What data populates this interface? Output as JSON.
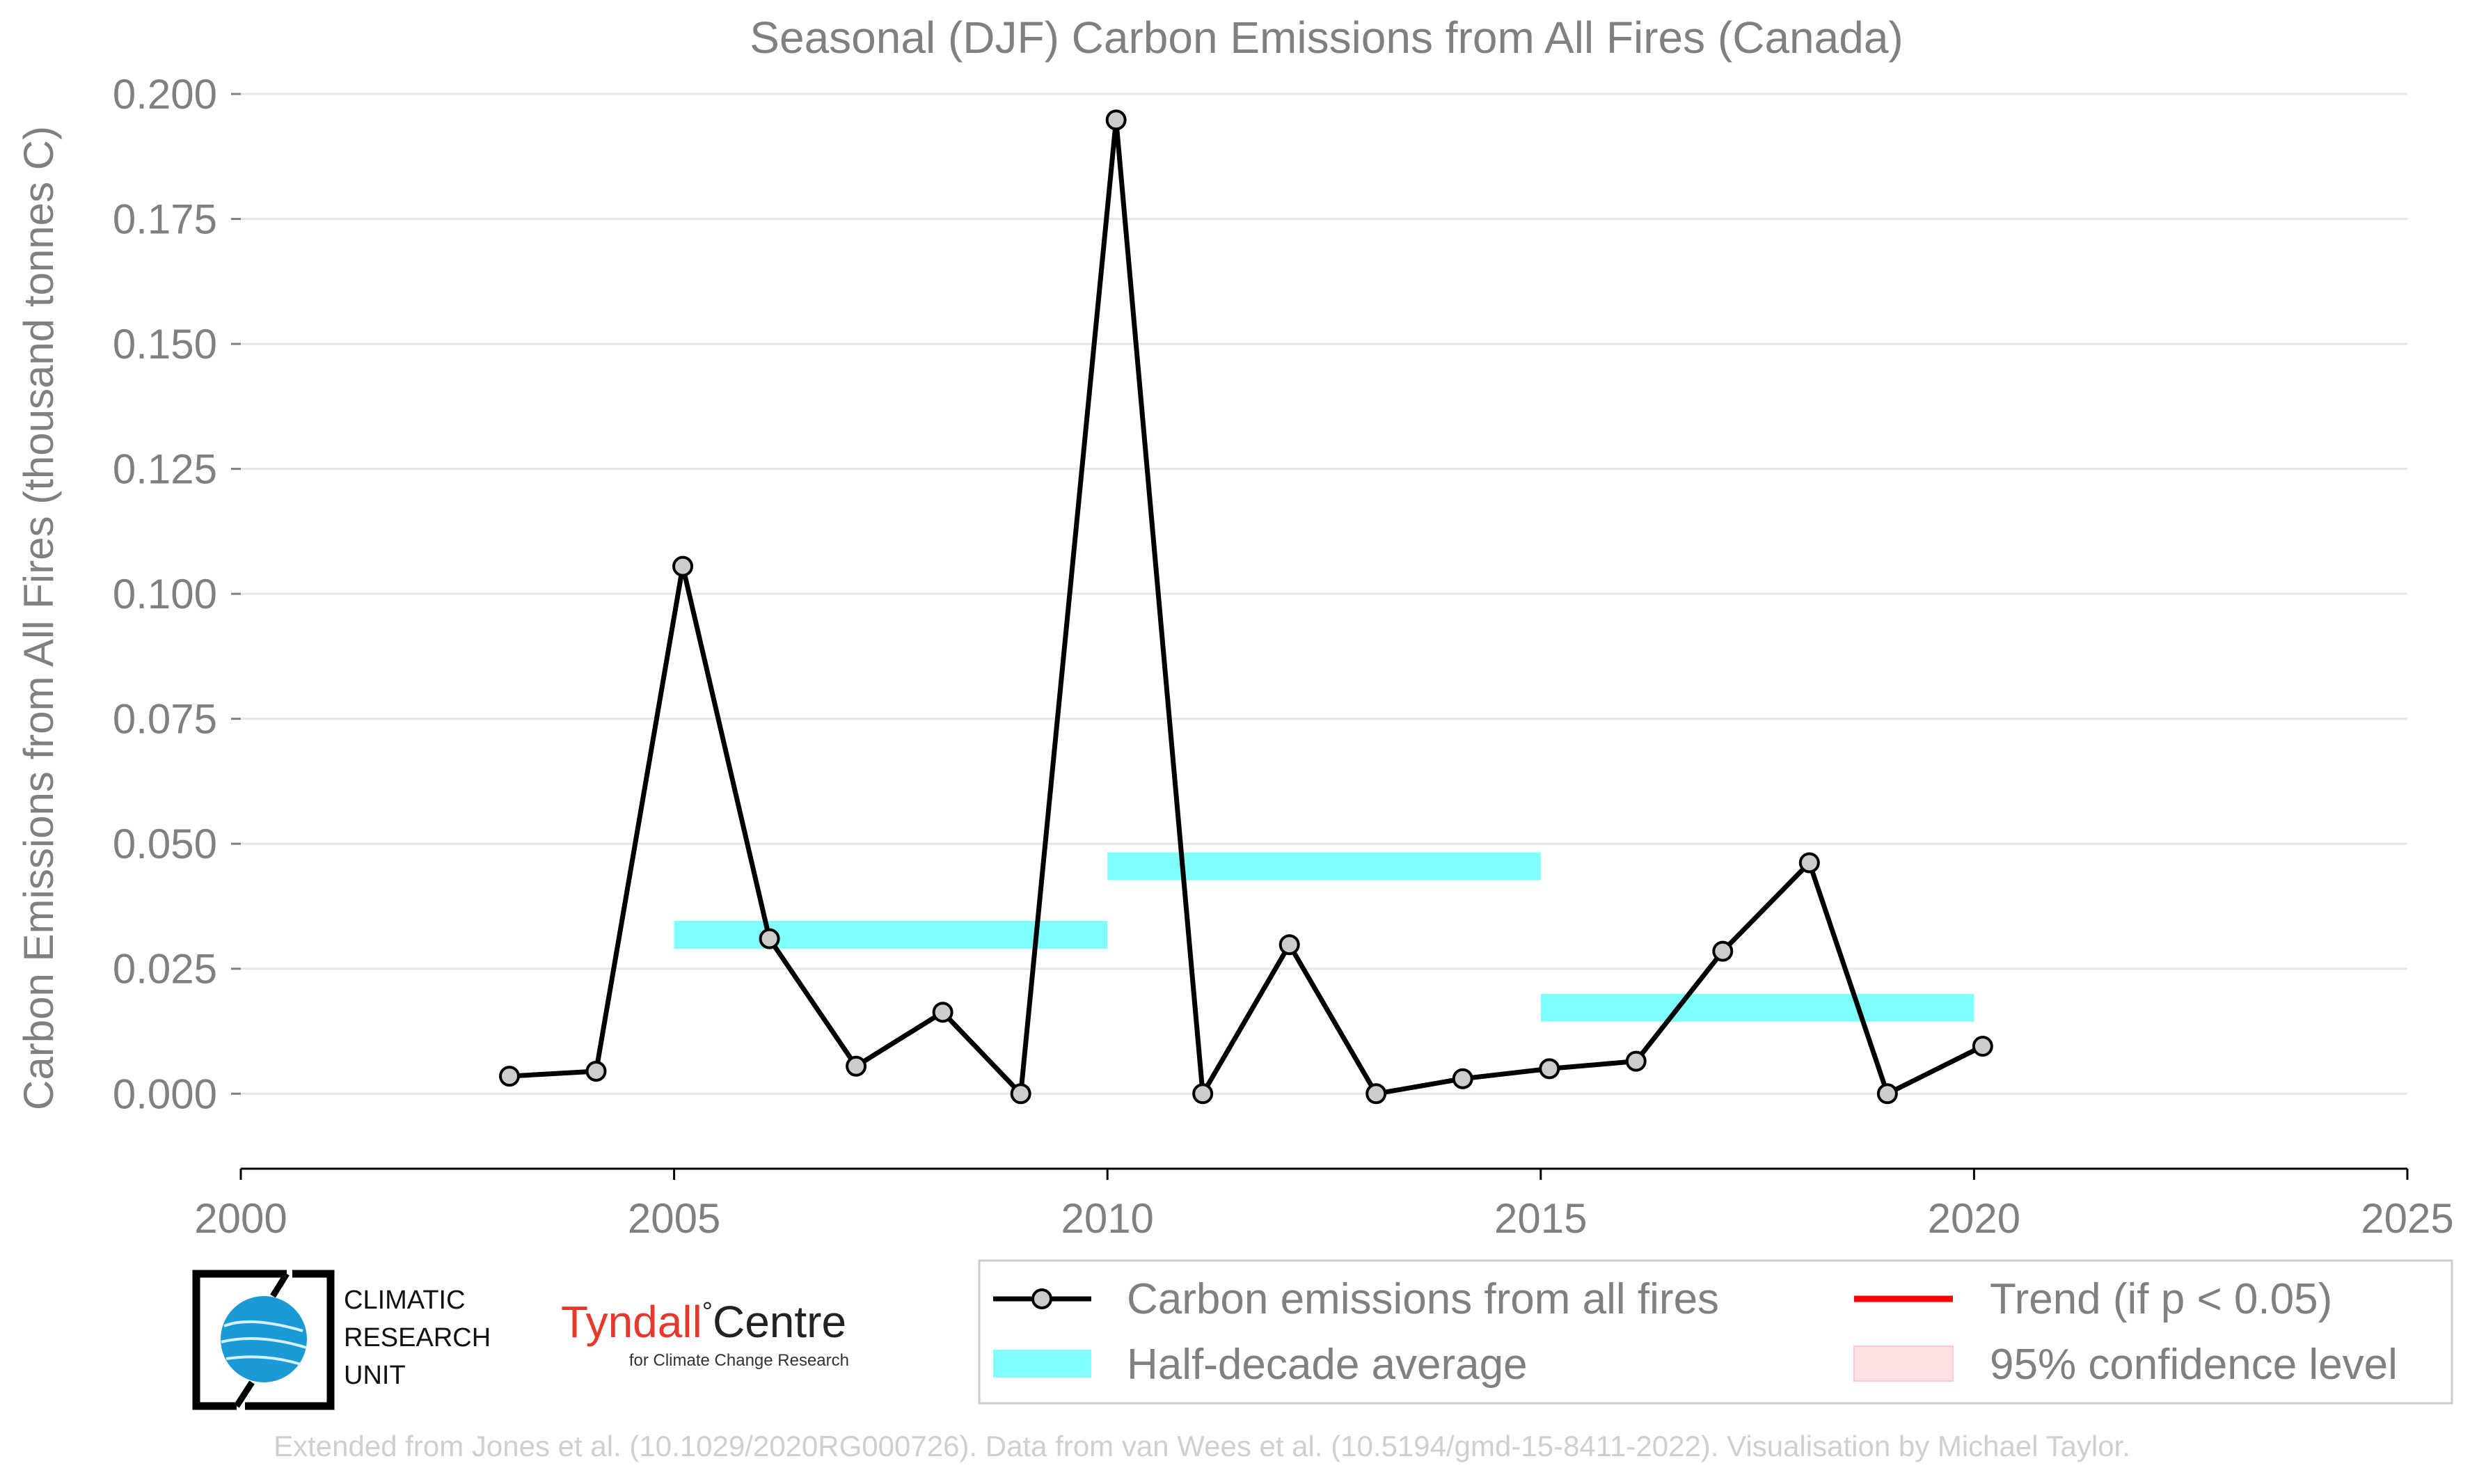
{
  "chart_data": {
    "type": "line",
    "title": "Seasonal (DJF) Carbon Emissions from All Fires (Canada)",
    "xlabel": "",
    "ylabel": "Carbon Emissions from All Fires (thousand tonnes C)",
    "xlim": [
      2000,
      2025
    ],
    "ylim": [
      -0.015,
      0.2
    ],
    "x_ticks": [
      "2000",
      "2005",
      "2010",
      "2015",
      "2020",
      "2025"
    ],
    "y_ticks": [
      "0.000",
      "0.025",
      "0.050",
      "0.075",
      "0.100",
      "0.125",
      "0.150",
      "0.175",
      "0.200"
    ],
    "grid": "horizontal",
    "series": [
      {
        "name": "Carbon emissions from all fires",
        "color": "#000000",
        "marker_fill": "#cccccc",
        "points": [
          {
            "x": 2003.1,
            "y": 0.0035
          },
          {
            "x": 2004.1,
            "y": 0.0045
          },
          {
            "x": 2005.1,
            "y": 0.1055
          },
          {
            "x": 2006.1,
            "y": 0.031
          },
          {
            "x": 2007.1,
            "y": 0.0055
          },
          {
            "x": 2008.1,
            "y": 0.0163
          },
          {
            "x": 2009.0,
            "y": 0.0
          },
          {
            "x": 2010.1,
            "y": 0.1948
          },
          {
            "x": 2011.1,
            "y": 0.0
          },
          {
            "x": 2012.1,
            "y": 0.0298
          },
          {
            "x": 2013.1,
            "y": 0.0
          },
          {
            "x": 2014.1,
            "y": 0.003
          },
          {
            "x": 2015.1,
            "y": 0.005
          },
          {
            "x": 2016.1,
            "y": 0.0065
          },
          {
            "x": 2017.1,
            "y": 0.0285
          },
          {
            "x": 2018.1,
            "y": 0.0462
          },
          {
            "x": 2019.0,
            "y": 0.0
          },
          {
            "x": 2020.1,
            "y": 0.0095
          }
        ]
      }
    ],
    "half_decade_averages": [
      {
        "x_start": 2005,
        "x_end": 2010,
        "y": 0.0318
      },
      {
        "x_start": 2010,
        "x_end": 2015,
        "y": 0.0455
      },
      {
        "x_start": 2015,
        "x_end": 2020,
        "y": 0.0172
      }
    ],
    "half_decade_color": "#80ffff",
    "legend": {
      "placement": "bottom-right",
      "entries": [
        {
          "label": "Carbon emissions from all fires",
          "kind": "line-marker",
          "color": "#000000"
        },
        {
          "label": "Trend (if p < 0.05)",
          "kind": "line",
          "color": "#ff0000"
        },
        {
          "label": "Half-decade average",
          "kind": "patch",
          "color": "#80ffff"
        },
        {
          "label": "95% confidence level",
          "kind": "patch",
          "color": "#ffe0e3"
        }
      ]
    }
  },
  "logos": {
    "cru_lines": [
      "CLIMATIC",
      "RESEARCH",
      "UNIT"
    ],
    "tyndall_main": "Tyndall",
    "tyndall_degree": "°",
    "tyndall_centre": "Centre",
    "tyndall_sub": "for Climate Change Research"
  },
  "credit": "Extended from Jones et al. (10.1029/2020RG000726). Data from van Wees et al. (10.5194/gmd-15-8411-2022). Visualisation by Michael Taylor."
}
